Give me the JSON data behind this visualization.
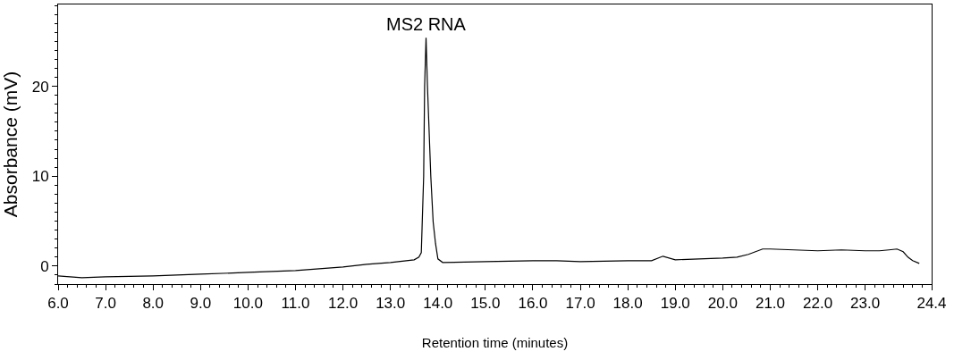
{
  "chart_data": {
    "type": "line",
    "xlabel": "Retention time (minutes)",
    "ylabel": "Absorbance (mV)",
    "annotations": [
      {
        "text": "MS2 RNA",
        "x": 13.75,
        "y": 25.4
      }
    ],
    "series": [
      {
        "color": "#000000",
        "x": [
          6.0,
          6.5,
          7.0,
          8.0,
          9.0,
          10.0,
          11.0,
          12.0,
          12.5,
          13.0,
          13.5,
          13.6,
          13.65,
          13.7,
          13.72,
          13.75,
          13.78,
          13.85,
          13.9,
          13.95,
          14.0,
          14.1,
          15.0,
          16.0,
          16.5,
          17.0,
          18.0,
          18.5,
          18.74,
          19.0,
          19.5,
          20.0,
          20.3,
          20.54,
          20.84,
          21.0,
          21.5,
          22.0,
          22.5,
          23.0,
          23.3,
          23.5,
          23.67,
          23.8,
          23.9,
          24.0,
          24.14
        ],
        "values": [
          -1.1,
          -1.3,
          -1.2,
          -1.1,
          -0.9,
          -0.7,
          -0.5,
          -0.1,
          0.2,
          0.4,
          0.7,
          1.0,
          1.5,
          10.0,
          20.0,
          25.4,
          20.0,
          10.0,
          4.9,
          2.5,
          0.8,
          0.4,
          0.5,
          0.6,
          0.6,
          0.5,
          0.6,
          0.6,
          1.1,
          0.7,
          0.8,
          0.9,
          1.0,
          1.3,
          1.9,
          1.9,
          1.8,
          1.7,
          1.8,
          1.7,
          1.7,
          1.8,
          1.9,
          1.6,
          1.0,
          0.6,
          0.3
        ]
      }
    ],
    "xlim": [
      6.0,
      24.4
    ],
    "xticks": [
      {
        "value": 6,
        "label": "6.0"
      },
      {
        "value": 7,
        "label": "7.0"
      },
      {
        "value": 8,
        "label": "8.0"
      },
      {
        "value": 9,
        "label": "9.0"
      },
      {
        "value": 10,
        "label": "10.0"
      },
      {
        "value": 11,
        "label": "11.0"
      },
      {
        "value": 12,
        "label": "12.0"
      },
      {
        "value": 13,
        "label": "13.0"
      },
      {
        "value": 14,
        "label": "14.0"
      },
      {
        "value": 15,
        "label": "15.0"
      },
      {
        "value": 16,
        "label": "16.0"
      },
      {
        "value": 17,
        "label": "17.0"
      },
      {
        "value": 18,
        "label": "18.0"
      },
      {
        "value": 19,
        "label": "19.0"
      },
      {
        "value": 20,
        "label": "20.0"
      },
      {
        "value": 21,
        "label": "21.0"
      },
      {
        "value": 22,
        "label": "22.0"
      },
      {
        "value": 23,
        "label": "23.0"
      },
      {
        "value": 24.4,
        "label": "24.4"
      }
    ],
    "ylim": [
      -2.0,
      29.1
    ],
    "yticks": [
      0,
      10,
      20
    ],
    "marker": "none",
    "line_style": "solid"
  }
}
